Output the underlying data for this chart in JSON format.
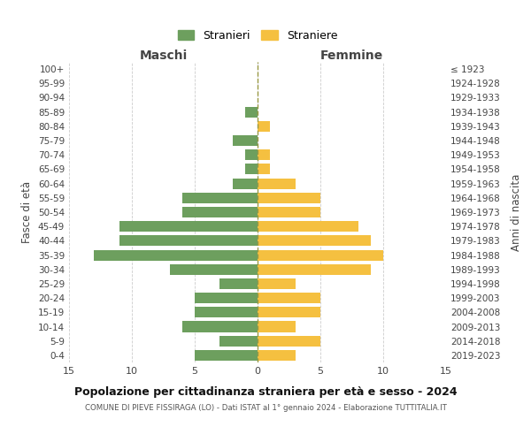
{
  "age_groups": [
    "100+",
    "95-99",
    "90-94",
    "85-89",
    "80-84",
    "75-79",
    "70-74",
    "65-69",
    "60-64",
    "55-59",
    "50-54",
    "45-49",
    "40-44",
    "35-39",
    "30-34",
    "25-29",
    "20-24",
    "15-19",
    "10-14",
    "5-9",
    "0-4"
  ],
  "birth_years": [
    "≤ 1923",
    "1924-1928",
    "1929-1933",
    "1934-1938",
    "1939-1943",
    "1944-1948",
    "1949-1953",
    "1954-1958",
    "1959-1963",
    "1964-1968",
    "1969-1973",
    "1974-1978",
    "1979-1983",
    "1984-1988",
    "1989-1993",
    "1994-1998",
    "1999-2003",
    "2004-2008",
    "2009-2013",
    "2014-2018",
    "2019-2023"
  ],
  "maschi": [
    0,
    0,
    0,
    1,
    0,
    2,
    1,
    1,
    2,
    6,
    6,
    11,
    11,
    13,
    7,
    3,
    5,
    5,
    6,
    3,
    5
  ],
  "femmine": [
    0,
    0,
    0,
    0,
    1,
    0,
    1,
    1,
    3,
    5,
    5,
    8,
    9,
    10,
    9,
    3,
    5,
    5,
    3,
    5,
    3
  ],
  "color_maschi": "#6d9f5e",
  "color_femmine": "#f5c040",
  "title": "Popolazione per cittadinanza straniera per età e sesso - 2024",
  "subtitle": "COMUNE DI PIEVE FISSIRAGA (LO) - Dati ISTAT al 1° gennaio 2024 - Elaborazione TUTTITALIA.IT",
  "xlabel_left": "Maschi",
  "xlabel_right": "Femmine",
  "ylabel_left": "Fasce di età",
  "ylabel_right": "Anni di nascita",
  "legend_maschi": "Stranieri",
  "legend_femmine": "Straniere",
  "xlim": 15,
  "background_color": "#ffffff",
  "grid_color": "#cccccc"
}
